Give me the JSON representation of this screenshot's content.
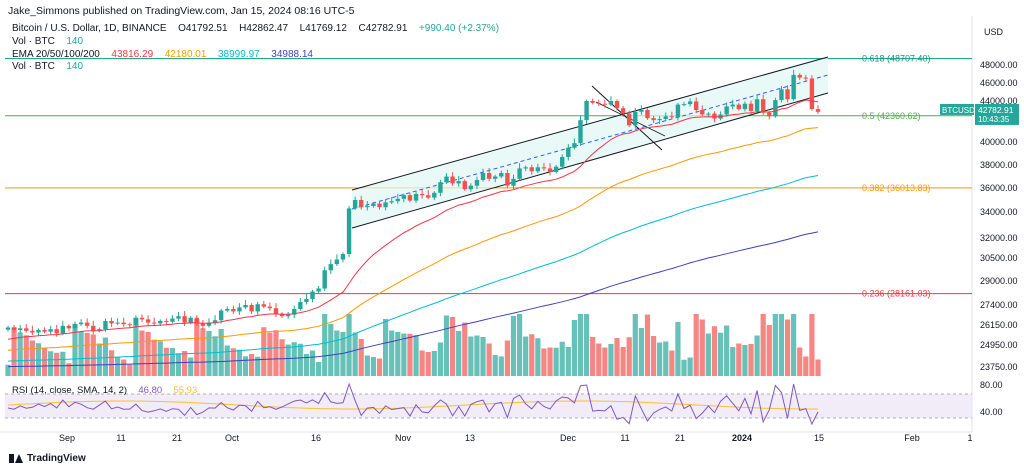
{
  "header": {
    "published": "Jake_Simmons published on TradingView.com, Jan 15, 2024 08:16 UTC-5",
    "symbol_line": "Bitcoin / U.S. Dollar, 1D, BINANCE",
    "ohlc": {
      "o": "O41792.51",
      "h": "H42862.47",
      "l": "L41769.12",
      "c": "C42782.91",
      "chg": "+990.40 (+2.37%)"
    },
    "vol1": {
      "label": "Vol · BTC",
      "value": "140"
    },
    "ema": {
      "label": "EMA 20/50/100/200",
      "v20": "43816.29",
      "v50": "42180.01",
      "v100": "38999.97",
      "v200": "34988.14"
    },
    "vol2": {
      "label": "Vol · BTC",
      "value": "140"
    }
  },
  "colors": {
    "up": "#26a69a",
    "down": "#ef5350",
    "ema20": "#f23645",
    "ema50": "#ff9800",
    "ema100": "#00bcd4",
    "ema200": "#3f3fbf",
    "fib618": "#089981",
    "fib5": "#4caf50",
    "fib382": "#ff9800",
    "fib236": "#f23645",
    "rsi": "#7e57c2",
    "rsi_sma": "#fbc02d"
  },
  "chart_data": {
    "type": "candlestick",
    "y_axis_label": "USD",
    "price_ticks": [
      "48000.00",
      "46000.00",
      "44000.00",
      "42000.00",
      "40000.00",
      "38000.00",
      "36000.00",
      "34000.00",
      "32000.00",
      "30500.00",
      "29000.00",
      "27400.00",
      "26150.00",
      "24950.00",
      "23750.00"
    ],
    "x_ticks": [
      "Sep",
      "11",
      "21",
      "Oct",
      "16",
      "Nov",
      "13",
      "Dec",
      "11",
      "21",
      "2024",
      "15",
      "Feb",
      "1"
    ],
    "fib_levels": [
      {
        "label": "0.618 (48707.40)",
        "price": 48707.4
      },
      {
        "label": "0.5 (42360.62)",
        "price": 42360.62
      },
      {
        "label": "0.382 (36013.83)",
        "price": 36013.83
      },
      {
        "label": "0.236 (28161.03)",
        "price": 28161.03
      }
    ],
    "last_price": {
      "symbol": "BTCUSD",
      "price": "42782.91",
      "countdown": "10:43:35"
    },
    "closes": [
      26000,
      25850,
      25950,
      25800,
      25700,
      25850,
      25750,
      25900,
      25650,
      26100,
      25950,
      26200,
      26300,
      26100,
      25800,
      25900,
      26400,
      26250,
      26300,
      26200,
      26150,
      26600,
      26500,
      26300,
      26250,
      26400,
      26350,
      26550,
      26700,
      26300,
      26600,
      26250,
      26100,
      26300,
      26450,
      27050,
      27150,
      27000,
      27250,
      27400,
      27000,
      27450,
      27300,
      27200,
      26850,
      26700,
      26800,
      27150,
      27600,
      27800,
      28300,
      28500,
      29700,
      30100,
      30400,
      30800,
      34300,
      35000,
      34400,
      34500,
      34700,
      34400,
      34800,
      34900,
      35100,
      35400,
      34950,
      35500,
      35400,
      35200,
      35600,
      36500,
      37000,
      36400,
      36600,
      35900,
      36200,
      36700,
      37300,
      36800,
      37000,
      37300,
      36200,
      36800,
      37700,
      37800,
      37450,
      37800,
      37700,
      37400,
      37850,
      38700,
      39500,
      39900,
      41900,
      44000,
      43800,
      43700,
      43600,
      44000,
      43200,
      42600,
      41450,
      42800,
      43000,
      42100,
      41900,
      42000,
      42300,
      42200,
      43600,
      43650,
      43950,
      43000,
      42500,
      42600,
      42050,
      42500,
      43400,
      43600,
      43100,
      43700,
      42900,
      44200,
      42700,
      42300,
      44100,
      45300,
      44200,
      46900,
      46600,
      46500,
      43100,
      42800
    ],
    "volume_note": "Vol · BTC",
    "rsi": {
      "label": "RSI (14, close, SMA, 14, 2)",
      "value": "46.80",
      "sma": "55.93",
      "levels": [
        "80.00",
        "40.00"
      ]
    }
  }
}
